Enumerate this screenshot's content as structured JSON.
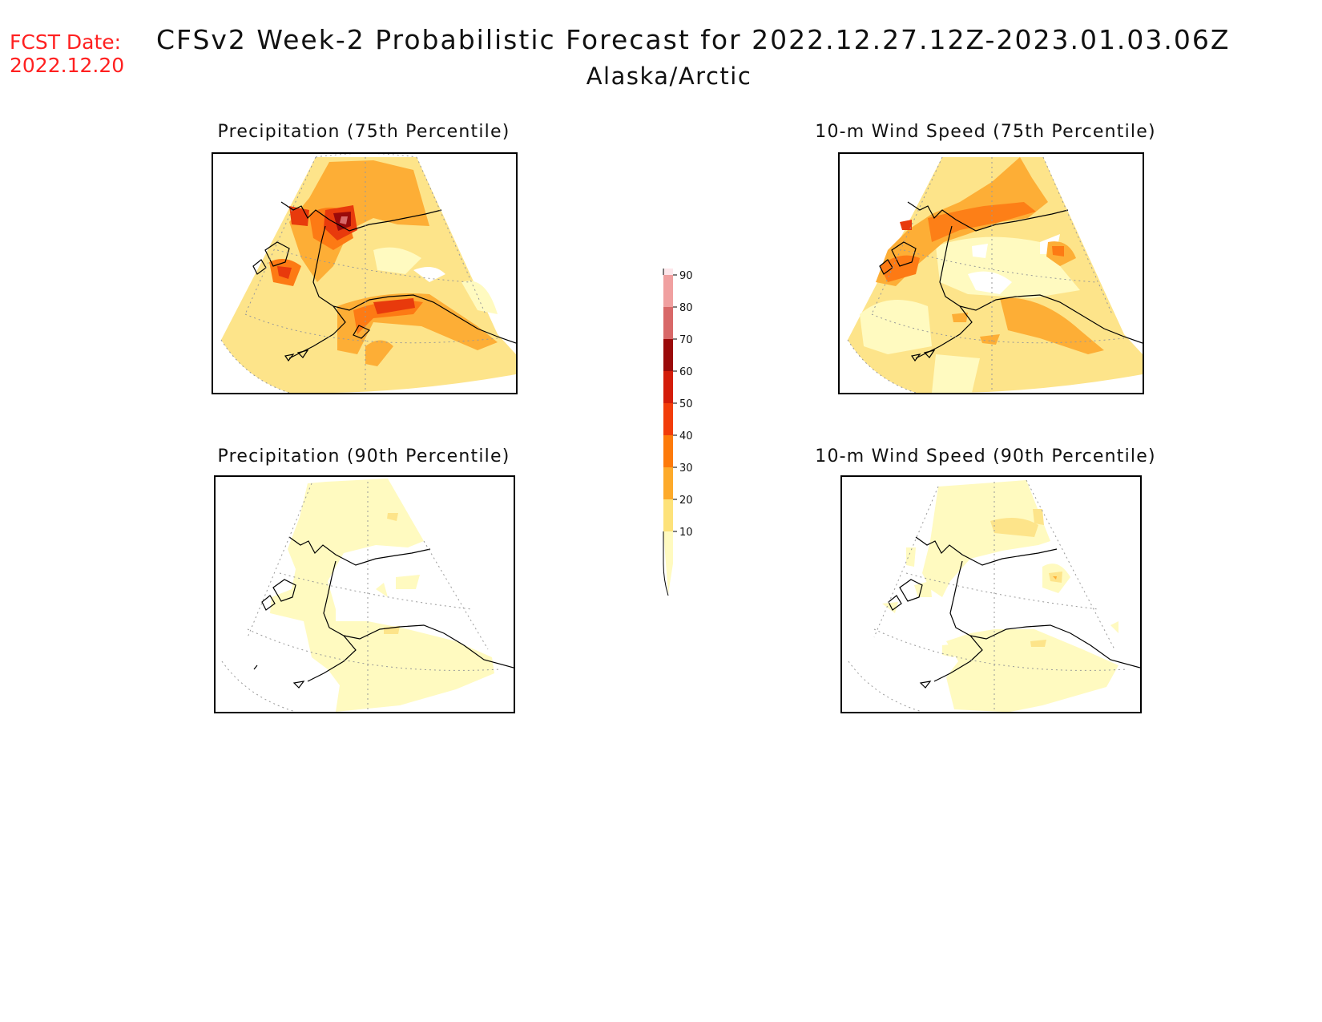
{
  "header": {
    "fcst_label": "FCST Date:",
    "fcst_date": "2022.12.20",
    "title": "CFSv2 Week-2 Probabilistic Forecast for 2022.12.27.12Z-2023.01.03.06Z",
    "region": "Alaska/Arctic"
  },
  "panels": {
    "precip75": {
      "title": "Precipitation (75th Percentile)"
    },
    "precip90": {
      "title": "Precipitation (90th Percentile)"
    },
    "wind75": {
      "title": "10-m Wind Speed (75th Percentile)"
    },
    "wind90": {
      "title": "10-m Wind Speed (90th Percentile)"
    }
  },
  "legend": {
    "levels": [
      "10",
      "20",
      "30",
      "40",
      "50",
      "60",
      "70",
      "80",
      "90"
    ],
    "colors": [
      "#fffac0",
      "#fde27a",
      "#fdaa2a",
      "#fd7a0a",
      "#f23c0a",
      "#d31c0a",
      "#9a0a0a",
      "#d86868",
      "#f0a0a0",
      "#fde6ea"
    ]
  }
}
